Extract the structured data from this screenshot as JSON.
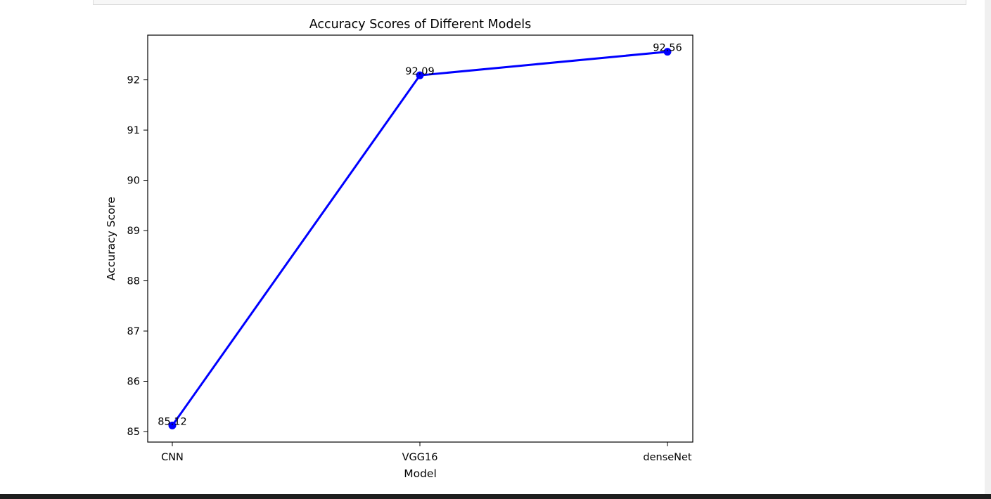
{
  "chart_data": {
    "type": "line",
    "title": "Accuracy Scores of Different Models",
    "xlabel": "Model",
    "ylabel": "Accuracy Score",
    "categories": [
      "CNN",
      "VGG16",
      "denseNet"
    ],
    "series": [
      {
        "values": [
          85.12,
          92.09,
          92.56
        ],
        "color": "#0000ff",
        "marker": "circle"
      }
    ],
    "data_labels": [
      "85.12",
      "92.09",
      "92.56"
    ],
    "yticks": [
      "85",
      "86",
      "87",
      "88",
      "89",
      "90",
      "91",
      "92"
    ],
    "ylim": [
      84.79,
      92.89
    ],
    "grid": false
  }
}
